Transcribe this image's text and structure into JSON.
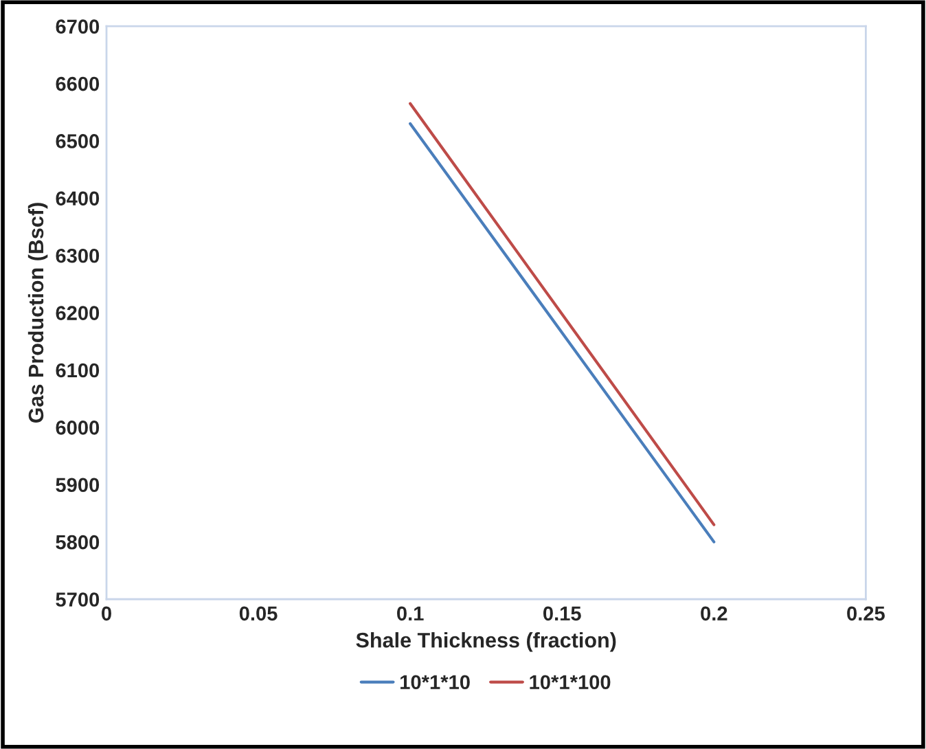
{
  "chart_data": {
    "type": "line",
    "xlabel": "Shale Thickness (fraction)",
    "ylabel": "Gas Production (Bscf)",
    "x": [
      0.1,
      0.2
    ],
    "series": [
      {
        "name": "10*1*10",
        "color": "#4a7ebb",
        "values": [
          6530,
          5800
        ]
      },
      {
        "name": "10*1*100",
        "color": "#be4b48",
        "values": [
          6565,
          5830
        ]
      }
    ],
    "xlim": [
      0,
      0.25
    ],
    "xticks": [
      0,
      0.05,
      0.1,
      0.15,
      0.2,
      0.25
    ],
    "ylim": [
      5700,
      6700
    ],
    "yticks": [
      5700,
      5800,
      5900,
      6000,
      6100,
      6200,
      6300,
      6400,
      6500,
      6600,
      6700
    ],
    "grid": false,
    "legend": "bottom",
    "marker": "none",
    "line_style": "solid"
  }
}
